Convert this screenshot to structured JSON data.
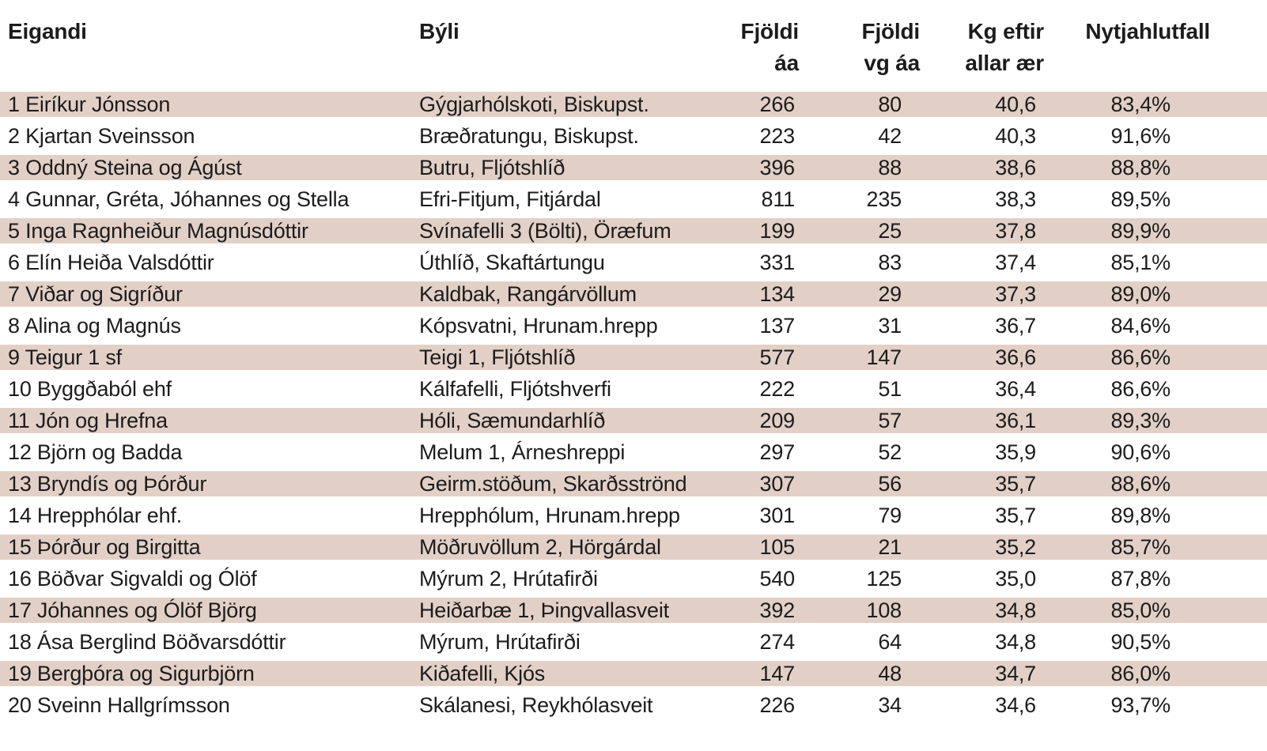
{
  "table": {
    "stripe_color": "#e2d0c7",
    "text_color": "#1c1c1c",
    "headers": {
      "owner": "Eigandi",
      "farm": "Býli",
      "ewes": "Fjöldi áa",
      "vg": "Fjöldi\nvg áa",
      "kg": "Kg eftir\nallar ær",
      "pct": "Nytjahlutfall"
    }
  },
  "chart_data": {
    "type": "table",
    "title": "",
    "columns": [
      "Eigandi",
      "Býli",
      "Fjöldi áa",
      "Fjöldi vg áa",
      "Kg eftir allar ær",
      "Nytjahlutfall"
    ],
    "rows": [
      {
        "rank": 1,
        "owner": "Eiríkur Jónsson",
        "farm": "Gýgjarhólskoti, Biskupst.",
        "ewes": "266",
        "vg": "80",
        "kg": "40,6",
        "pct": "83,4%"
      },
      {
        "rank": 2,
        "owner": "Kjartan Sveinsson",
        "farm": "Bræðratungu, Biskupst.",
        "ewes": "223",
        "vg": "42",
        "kg": "40,3",
        "pct": "91,6%"
      },
      {
        "rank": 3,
        "owner": "Oddný Steina og Ágúst",
        "farm": "Butru, Fljótshlíð",
        "ewes": "396",
        "vg": "88",
        "kg": "38,6",
        "pct": "88,8%"
      },
      {
        "rank": 4,
        "owner": "Gunnar, Gréta, Jóhannes og Stella",
        "farm": "Efri-Fitjum, Fitjárdal",
        "ewes": "811",
        "vg": "235",
        "kg": "38,3",
        "pct": "89,5%"
      },
      {
        "rank": 5,
        "owner": "Inga Ragnheiður Magnúsdóttir",
        "farm": "Svínafelli 3 (Bölti), Öræfum",
        "ewes": "199",
        "vg": "25",
        "kg": "37,8",
        "pct": "89,9%"
      },
      {
        "rank": 6,
        "owner": "Elín Heiða Valsdóttir",
        "farm": "Úthlíð, Skaftártungu",
        "ewes": "331",
        "vg": "83",
        "kg": "37,4",
        "pct": "85,1%"
      },
      {
        "rank": 7,
        "owner": "Viðar og Sigríður",
        "farm": "Kaldbak, Rangárvöllum",
        "ewes": "134",
        "vg": "29",
        "kg": "37,3",
        "pct": "89,0%"
      },
      {
        "rank": 8,
        "owner": "Alina og Magnús",
        "farm": "Kópsvatni, Hrunam.hrepp",
        "ewes": "137",
        "vg": "31",
        "kg": "36,7",
        "pct": "84,6%"
      },
      {
        "rank": 9,
        "owner": "Teigur 1 sf",
        "farm": "Teigi 1, Fljótshlíð",
        "ewes": "577",
        "vg": "147",
        "kg": "36,6",
        "pct": "86,6%"
      },
      {
        "rank": 10,
        "owner": "Byggðaból ehf",
        "farm": "Kálfafelli, Fljótshverfi",
        "ewes": "222",
        "vg": "51",
        "kg": "36,4",
        "pct": "86,6%"
      },
      {
        "rank": 11,
        "owner": "Jón og Hrefna",
        "farm": "Hóli, Sæmundarhlíð",
        "ewes": "209",
        "vg": "57",
        "kg": "36,1",
        "pct": "89,3%"
      },
      {
        "rank": 12,
        "owner": "Björn og Badda",
        "farm": "Melum 1, Árneshreppi",
        "ewes": "297",
        "vg": "52",
        "kg": "35,9",
        "pct": "90,6%"
      },
      {
        "rank": 13,
        "owner": "Bryndís og Þórður",
        "farm": "Geirm.stöðum, Skarðsströnd",
        "ewes": "307",
        "vg": "56",
        "kg": "35,7",
        "pct": "88,6%"
      },
      {
        "rank": 14,
        "owner": "Hrepphólar ehf.",
        "farm": "Hrepphólum, Hrunam.hrepp",
        "ewes": "301",
        "vg": "79",
        "kg": "35,7",
        "pct": "89,8%"
      },
      {
        "rank": 15,
        "owner": "Þórður og Birgitta",
        "farm": "Möðruvöllum 2, Hörgárdal",
        "ewes": "105",
        "vg": "21",
        "kg": "35,2",
        "pct": "85,7%"
      },
      {
        "rank": 16,
        "owner": "Böðvar Sigvaldi og Ólöf",
        "farm": "Mýrum 2, Hrútafirði",
        "ewes": "540",
        "vg": "125",
        "kg": "35,0",
        "pct": "87,8%"
      },
      {
        "rank": 17,
        "owner": "Jóhannes og Ólöf Björg",
        "farm": "Heiðarbæ 1, Þingvallasveit",
        "ewes": "392",
        "vg": "108",
        "kg": "34,8",
        "pct": "85,0%"
      },
      {
        "rank": 18,
        "owner": "Ása Berglind Böðvarsdóttir",
        "farm": "Mýrum, Hrútafirði",
        "ewes": "274",
        "vg": "64",
        "kg": "34,8",
        "pct": "90,5%"
      },
      {
        "rank": 19,
        "owner": "Bergþóra og Sigurbjörn",
        "farm": "Kiðafelli, Kjós",
        "ewes": "147",
        "vg": "48",
        "kg": "34,7",
        "pct": "86,0%"
      },
      {
        "rank": 20,
        "owner": "Sveinn Hallgrímsson",
        "farm": "Skálanesi, Reykhólasveit",
        "ewes": "226",
        "vg": "34",
        "kg": "34,6",
        "pct": "93,7%"
      }
    ]
  }
}
